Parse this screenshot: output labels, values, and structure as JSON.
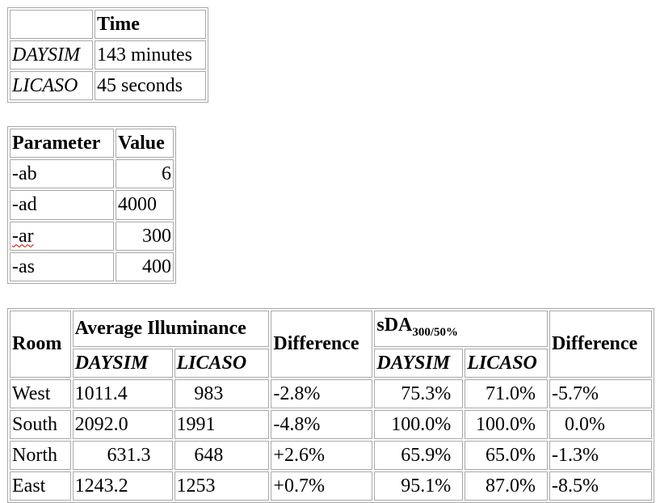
{
  "timing_table": {
    "header": "Time",
    "rows": [
      {
        "tool": "DAYSIM",
        "time": "143 minutes"
      },
      {
        "tool": "LICASO",
        "time": "45 seconds"
      }
    ]
  },
  "parameter_table": {
    "headers": [
      "Parameter",
      "Value"
    ],
    "rows": [
      {
        "param": "-ab",
        "value": "6"
      },
      {
        "param": "-ad",
        "value": "4000"
      },
      {
        "param": "-ar",
        "value": "300"
      },
      {
        "param": "-as",
        "value": "400"
      }
    ]
  },
  "results_table": {
    "room_header": "Room",
    "avg_illuminance_header": "Average Illuminance",
    "difference_header": "Difference",
    "sda_header": "sDA",
    "sda_subscript": "300/50%",
    "difference2_header": "Difference",
    "daysim_header": "DAYSIM",
    "licaso_header": "LICASO",
    "rows": [
      {
        "room": "West",
        "ill_daysim": "1011.4",
        "ill_licaso": "983",
        "ill_diff": "-2.8%",
        "sda_daysim": "75.3%",
        "sda_licaso": "71.0%",
        "sda_diff": "-5.7%"
      },
      {
        "room": "South",
        "ill_daysim": "2092.0",
        "ill_licaso": "1991",
        "ill_diff": "-4.8%",
        "sda_daysim": "100.0%",
        "sda_licaso": "100.0%",
        "sda_diff": "0.0%"
      },
      {
        "room": "North",
        "ill_daysim": "631.3",
        "ill_licaso": "648",
        "ill_diff": "+2.6%",
        "sda_daysim": "65.9%",
        "sda_licaso": "65.0%",
        "sda_diff": "-1.3%"
      },
      {
        "room": "East",
        "ill_daysim": "1243.2",
        "ill_licaso": "1253",
        "ill_diff": "+0.7%",
        "sda_daysim": "95.1%",
        "sda_licaso": "87.0%",
        "sda_diff": "-8.5%"
      }
    ]
  }
}
